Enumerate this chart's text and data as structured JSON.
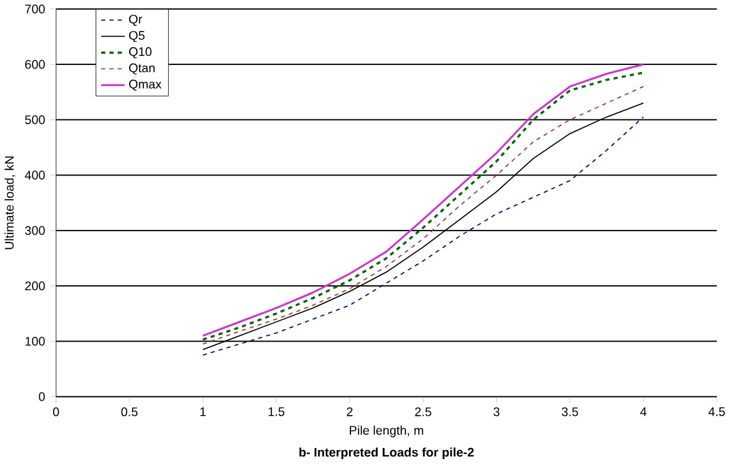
{
  "chart_data": {
    "type": "line",
    "title": "b- Interpreted Loads for pile-2",
    "xlabel": "Pile length, m",
    "ylabel": "Ultimate load, kN",
    "xlim": [
      0,
      4.5
    ],
    "xticks": [
      0,
      0.5,
      1,
      1.5,
      2,
      2.5,
      3,
      3.5,
      4,
      4.5
    ],
    "ylim": [
      0,
      700
    ],
    "yticks": [
      0,
      100,
      200,
      300,
      400,
      500,
      600,
      700
    ],
    "grid": "y",
    "legend": "top left",
    "marker": "none",
    "x": [
      1,
      1.25,
      1.5,
      1.75,
      2,
      2.25,
      2.5,
      2.75,
      3,
      3.25,
      3.5,
      3.75,
      4
    ],
    "series": [
      {
        "name": "Qr",
        "color": "#000080",
        "line_style": "dashed",
        "values": [
          75,
          95,
          115,
          140,
          165,
          205,
          245,
          290,
          330,
          360,
          390,
          445,
          505
        ]
      },
      {
        "name": "Q5",
        "color": "#000000",
        "line_style": "solid",
        "values": [
          85,
          110,
          135,
          160,
          190,
          225,
          270,
          320,
          370,
          430,
          475,
          505,
          530
        ]
      },
      {
        "name": "Q10",
        "color": "#006600",
        "line_style": "dashed",
        "values": [
          103,
          125,
          150,
          178,
          210,
          250,
          305,
          365,
          425,
          500,
          553,
          572,
          585
        ]
      },
      {
        "name": "Qtan",
        "color": "#993333",
        "line_style": "dashed",
        "values": [
          95,
          118,
          140,
          165,
          195,
          235,
          285,
          345,
          400,
          460,
          500,
          530,
          560
        ]
      },
      {
        "name": "Qmax",
        "color": "#cc33cc",
        "line_style": "solid",
        "values": [
          110,
          135,
          160,
          188,
          222,
          262,
          320,
          380,
          440,
          510,
          560,
          583,
          600
        ]
      }
    ]
  }
}
